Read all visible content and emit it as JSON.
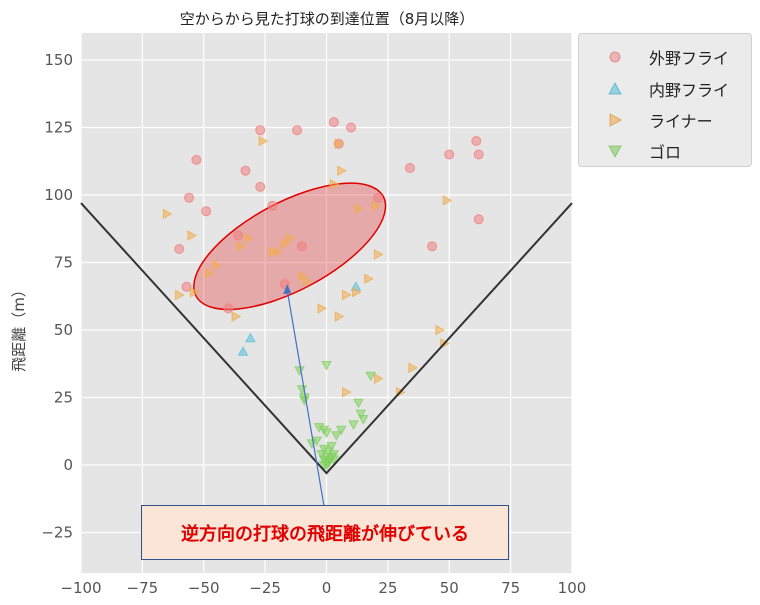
{
  "chart_data": {
    "type": "scatter",
    "title": "空からから見た打球の到達位置（8月以降）",
    "xlabel": "",
    "ylabel": "飛距離（m）",
    "xlim": [
      -100,
      100
    ],
    "ylim": [
      -40,
      160
    ],
    "xticks": [
      -100,
      -75,
      -50,
      -25,
      0,
      25,
      50,
      75,
      100
    ],
    "yticks": [
      -25,
      0,
      25,
      50,
      75,
      100,
      125,
      150
    ],
    "grid": true,
    "legend_position": "outside-top-right",
    "series": [
      {
        "name": "外野フライ",
        "marker": "circle",
        "color": "#f08080",
        "points": [
          [
            3,
            127
          ],
          [
            10,
            125
          ],
          [
            -27,
            124
          ],
          [
            -12,
            124
          ],
          [
            5,
            119
          ],
          [
            -53,
            113
          ],
          [
            -33,
            109
          ],
          [
            -27,
            103
          ],
          [
            -56,
            99
          ],
          [
            -49,
            94
          ],
          [
            -22,
            96
          ],
          [
            -36,
            85
          ],
          [
            -60,
            80
          ],
          [
            -40,
            58
          ],
          [
            -57,
            66
          ],
          [
            -17,
            67
          ],
          [
            -10,
            81
          ],
          [
            34,
            110
          ],
          [
            50,
            115
          ],
          [
            61,
            120
          ],
          [
            62,
            115
          ],
          [
            62,
            91
          ],
          [
            43,
            81
          ],
          [
            21,
            99
          ]
        ]
      },
      {
        "name": "内野フライ",
        "marker": "triangle-up",
        "color": "#5bc0de",
        "points": [
          [
            -31,
            47
          ],
          [
            -34,
            42
          ],
          [
            12,
            66
          ]
        ]
      },
      {
        "name": "ライナー",
        "marker": "triangle-right",
        "color": "#f0ad4e",
        "points": [
          [
            -26,
            120
          ],
          [
            5,
            119
          ],
          [
            -65,
            93
          ],
          [
            -55,
            85
          ],
          [
            -35,
            81
          ],
          [
            -32,
            84
          ],
          [
            -15,
            84
          ],
          [
            -17,
            82
          ],
          [
            -20,
            79
          ],
          [
            -45,
            74
          ],
          [
            -48,
            71
          ],
          [
            -10,
            70
          ],
          [
            -22,
            79
          ],
          [
            -8,
            68
          ],
          [
            -60,
            63
          ],
          [
            -54,
            64
          ],
          [
            -37,
            55
          ],
          [
            -2,
            58
          ],
          [
            5,
            55
          ],
          [
            8,
            63
          ],
          [
            12,
            64
          ],
          [
            17,
            69
          ],
          [
            21,
            78
          ],
          [
            20,
            96
          ],
          [
            3,
            104
          ],
          [
            13,
            95
          ],
          [
            6,
            109
          ],
          [
            49,
            98
          ],
          [
            46,
            50
          ],
          [
            48,
            45
          ],
          [
            35,
            36
          ],
          [
            21,
            32
          ],
          [
            30,
            27
          ],
          [
            8,
            27
          ]
        ]
      },
      {
        "name": "ゴロ",
        "marker": "triangle-down",
        "color": "#82d160",
        "points": [
          [
            0,
            37
          ],
          [
            -11,
            35
          ],
          [
            -10,
            28
          ],
          [
            -9,
            25
          ],
          [
            -9,
            24
          ],
          [
            18,
            33
          ],
          [
            13,
            23
          ],
          [
            14,
            19
          ],
          [
            15,
            17
          ],
          [
            11,
            15
          ],
          [
            6,
            13
          ],
          [
            4,
            11
          ],
          [
            -3,
            14
          ],
          [
            -1,
            13
          ],
          [
            0,
            12
          ],
          [
            2,
            7
          ],
          [
            -4,
            9
          ],
          [
            -6,
            8
          ],
          [
            -1,
            6
          ],
          [
            1,
            5
          ],
          [
            3,
            4
          ],
          [
            0,
            3
          ],
          [
            -1,
            2
          ],
          [
            0,
            1
          ],
          [
            1,
            2
          ],
          [
            2,
            3
          ],
          [
            -2,
            4
          ],
          [
            3,
            2
          ],
          [
            0,
            0
          ],
          [
            1,
            1
          ],
          [
            -1,
            0
          ]
        ]
      }
    ],
    "foul_lines": [
      [
        [
          -100,
          97
        ],
        [
          0,
          -3
        ],
        [
          100,
          97
        ]
      ]
    ],
    "highlight_ellipse": {
      "center": [
        -15,
        81
      ],
      "color": "#e83a3a"
    },
    "annotation": {
      "text": "逆方向の打球の飛距離が伸びている",
      "arrow_to": [
        -16,
        67
      ]
    }
  }
}
